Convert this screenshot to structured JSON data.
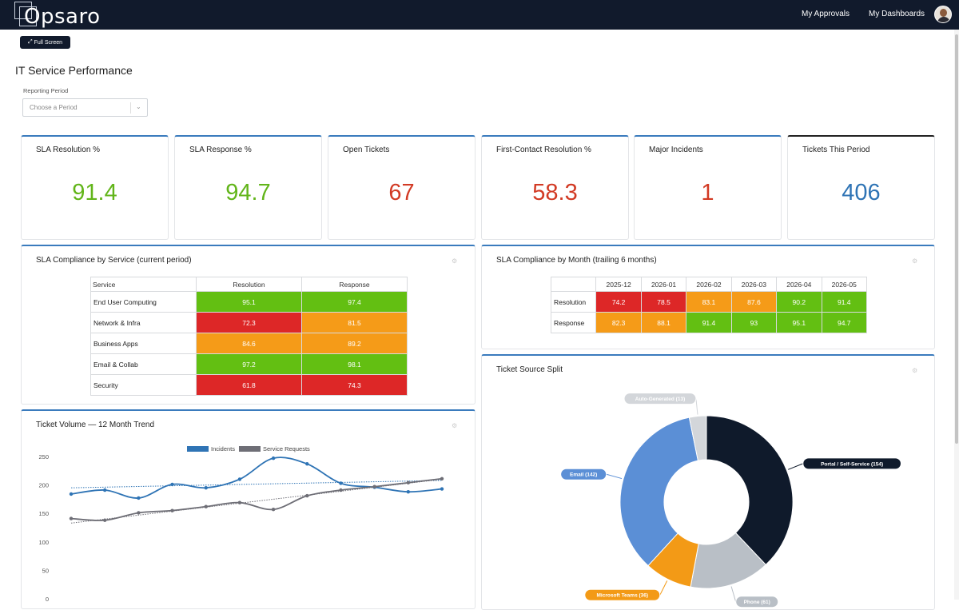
{
  "header": {
    "logo_text": "Opsaro",
    "nav": [
      "My Approvals",
      "My Dashboards"
    ]
  },
  "toolbar": {
    "fullscreen_label": "Full Screen"
  },
  "page": {
    "title": "IT Service Performance",
    "period_label": "Reporting Period",
    "period_placeholder": "Choose a Period"
  },
  "kpis": [
    {
      "label": "SLA Resolution %",
      "value": "91.4",
      "color": "#62b51a"
    },
    {
      "label": "SLA Response %",
      "value": "94.7",
      "color": "#62b51a"
    },
    {
      "label": "Open Tickets",
      "value": "67",
      "color": "#d23a24"
    },
    {
      "label": "First-Contact Resolution %",
      "value": "58.3",
      "color": "#d23a24"
    },
    {
      "label": "Major Incidents",
      "value": "1",
      "color": "#d23a24"
    },
    {
      "label": "Tickets This Period",
      "value": "406",
      "color": "#2f74b5"
    }
  ],
  "sla_by_service": {
    "title": "SLA Compliance by Service (current period)",
    "headers": [
      "Service",
      "Resolution",
      "Response"
    ],
    "rows": [
      {
        "service": "End User Computing",
        "resolution": "95.1",
        "response": "97.4",
        "res_c": "g",
        "rsp_c": "g"
      },
      {
        "service": "Network & Infra",
        "resolution": "72.3",
        "response": "81.5",
        "res_c": "r",
        "rsp_c": "o"
      },
      {
        "service": "Business Apps",
        "resolution": "84.6",
        "response": "89.2",
        "res_c": "o",
        "rsp_c": "o"
      },
      {
        "service": "Email & Collab",
        "resolution": "97.2",
        "response": "98.1",
        "res_c": "g",
        "rsp_c": "g"
      },
      {
        "service": "Security",
        "resolution": "61.8",
        "response": "74.3",
        "res_c": "r",
        "rsp_c": "r"
      }
    ]
  },
  "sla_by_month": {
    "title": "SLA Compliance by Month (trailing 6 months)",
    "months": [
      "2025-12",
      "2026-01",
      "2026-02",
      "2026-03",
      "2026-04",
      "2026-05"
    ],
    "rows": [
      {
        "label": "Resolution",
        "values": [
          "74.2",
          "78.5",
          "83.1",
          "87.6",
          "90.2",
          "91.4"
        ],
        "colors": [
          "r",
          "r",
          "o",
          "o",
          "g",
          "g"
        ]
      },
      {
        "label": "Response",
        "values": [
          "82.3",
          "88.1",
          "91.4",
          "93",
          "95.1",
          "94.7"
        ],
        "colors": [
          "o",
          "o",
          "g",
          "g",
          "g",
          "g"
        ]
      }
    ]
  },
  "trend": {
    "title": "Ticket Volume — 12 Month Trend"
  },
  "source": {
    "title": "Ticket Source Split"
  },
  "chart_data": [
    {
      "type": "line",
      "title": "Ticket Volume — 12 Month Trend",
      "legend": "top",
      "y_ticks": [
        "250",
        "200",
        "150",
        "100",
        "50",
        "0"
      ],
      "ylim": [
        0,
        250
      ],
      "grid": false,
      "series": [
        {
          "name": "Incidents",
          "color": "#2f74b5",
          "values": [
            184,
            191,
            177,
            201,
            195,
            210,
            247,
            237,
            203,
            196,
            188,
            193
          ],
          "trendline": [
            195,
            208
          ]
        },
        {
          "name": "Service Requests",
          "color": "#6e6e76",
          "values": [
            141,
            138,
            151,
            155,
            162,
            169,
            157,
            181,
            191,
            197,
            204,
            211
          ],
          "trendline": [
            133,
            210
          ]
        }
      ]
    },
    {
      "type": "pie",
      "title": "Ticket Source Split",
      "donut": true,
      "slices": [
        {
          "label": "Portal / Self-Service (154)",
          "value": 154,
          "color": "#0f1a2b"
        },
        {
          "label": "Phone (61)",
          "value": 61,
          "color": "#b9bfc6"
        },
        {
          "label": "Microsoft Teams (36)",
          "value": 36,
          "color": "#f39a16"
        },
        {
          "label": "Email (142)",
          "value": 142,
          "color": "#5b8fd6"
        },
        {
          "label": "Auto-Generated (13)",
          "value": 13,
          "color": "#d3d6da"
        }
      ]
    }
  ]
}
